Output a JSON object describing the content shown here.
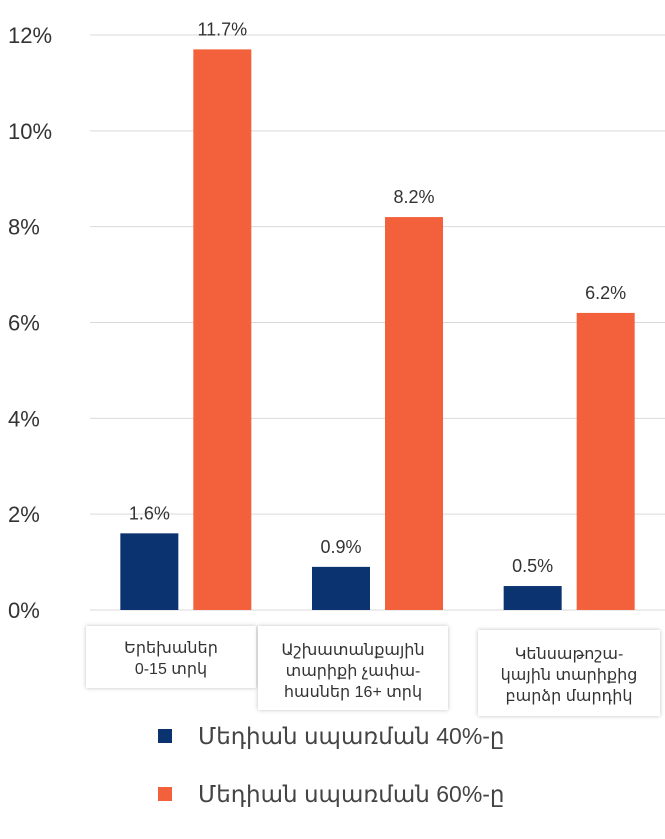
{
  "chart_data": {
    "type": "bar",
    "categories": [
      [
        "Երեխաներ",
        "0-15 տրկ"
      ],
      [
        "Աշխատանքային",
        "տարիքի չափա-",
        "հասներ 16+ տրկ"
      ],
      [
        "Կենսաթոշա-",
        "կային տարիքից",
        "բարձր մարդիկ"
      ]
    ],
    "series": [
      {
        "name": "Մեդիան սպառման 40%-ը",
        "color": "#0a3370",
        "values": [
          1.6,
          0.9,
          0.5
        ],
        "labels": [
          "1.6%",
          "0.9%",
          "0.5%"
        ]
      },
      {
        "name": "Մեդիան սպառման 60%-ը",
        "color": "#f2603c",
        "values": [
          11.7,
          8.2,
          6.2
        ],
        "labels": [
          "11.7%",
          "8.2%",
          "6.2%"
        ]
      }
    ],
    "yticks": [
      "0%",
      "2%",
      "4%",
      "6%",
      "8%",
      "10%",
      "12%"
    ],
    "ylim": [
      0,
      12
    ],
    "grid": true,
    "legend_position": "bottom"
  }
}
